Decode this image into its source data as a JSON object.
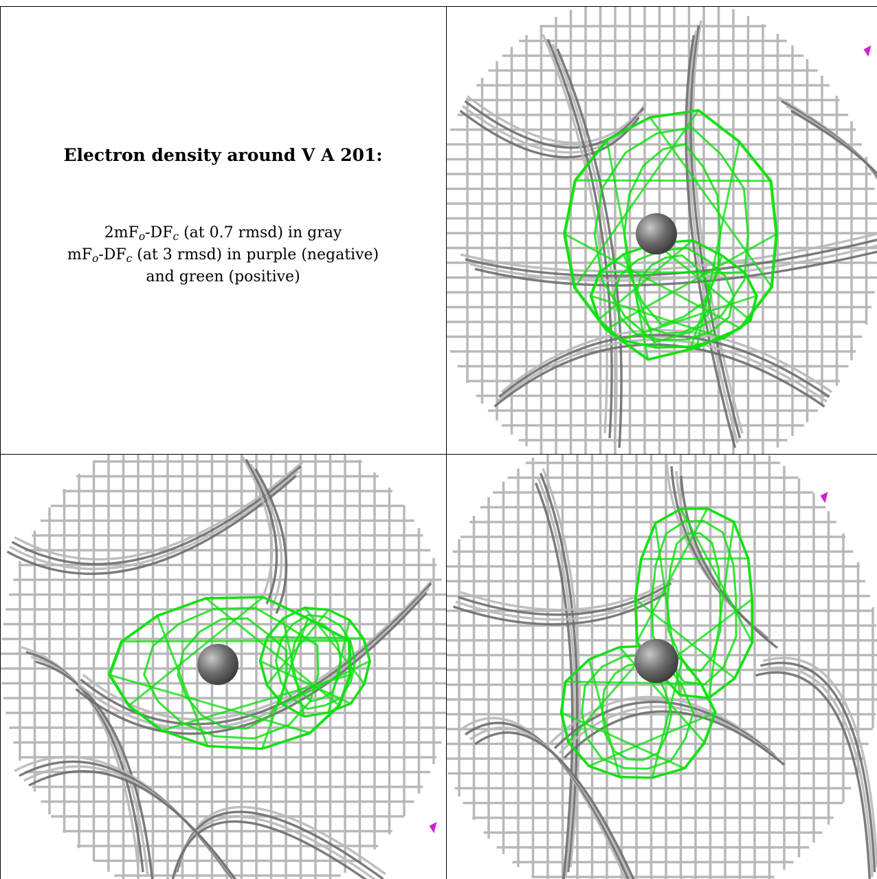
{
  "caption": {
    "title": "Electron density around V A 201:",
    "line1": {
      "pre": "2mF",
      "sub1": "o",
      "mid": "-DF",
      "sub2": "c",
      "post": " (at 0.7 rmsd) in gray"
    },
    "line2": {
      "pre": "mF",
      "sub1": "o",
      "mid": "-DF",
      "sub2": "c",
      "post": " (at 3 rmsd) in purple (negative)"
    },
    "line3": "and green (positive)"
  },
  "panels": [
    {
      "name": "view-top-right"
    },
    {
      "name": "view-bottom-left"
    },
    {
      "name": "view-bottom-right"
    }
  ],
  "colors": {
    "gray_mesh": "#b8b8b8",
    "dark_mesh": "#6e6e6e",
    "green_mesh": "#11e011",
    "purple_mesh": "#d020d0",
    "atom": "#6a6a6a"
  }
}
